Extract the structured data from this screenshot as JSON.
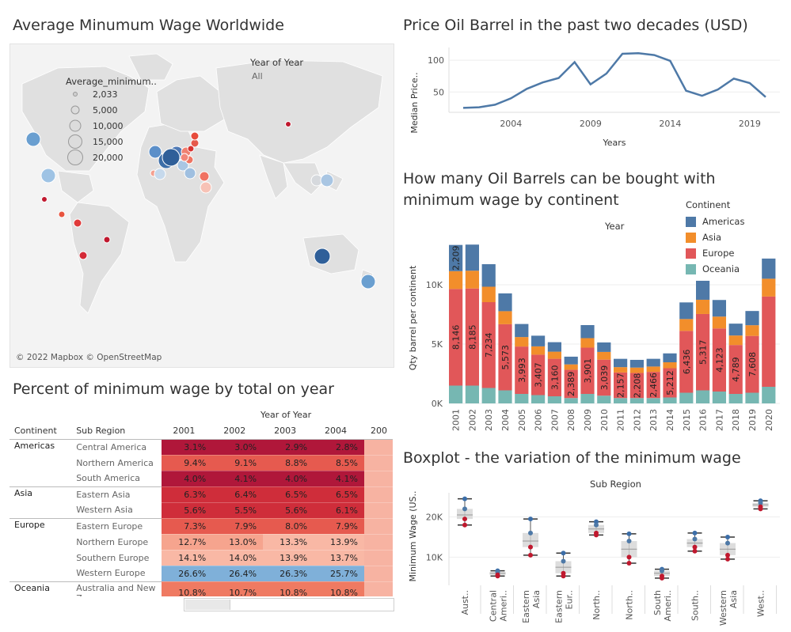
{
  "map": {
    "title": "Average Minumum Wage Worldwide",
    "legend_title": "Average_minimum..",
    "legend_sizes": [
      "2,033",
      "5,000",
      "10,000",
      "15,000",
      "20,000"
    ],
    "filter_title": "Year of Year",
    "filter_value": "All",
    "credit": "© 2022 Mapbox © OpenStreetMap"
  },
  "oil_price": {
    "title": "Price Oil Barrel in the past two decades (USD)",
    "ylabel": "Median Price..",
    "xlabel": "Years",
    "x_ticks": [
      "2004",
      "2009",
      "2014",
      "2019"
    ],
    "y_ticks": [
      "50",
      "100"
    ]
  },
  "barrels": {
    "title_line1": "How many Oil Barrels can be bought with",
    "title_line2": "minimum wage by continent",
    "header": "Year",
    "ylabel": "Qty barrel per continent",
    "y_ticks": [
      "0K",
      "5K",
      "10K"
    ],
    "legend_title": "Continent",
    "legend": [
      {
        "name": "Americas",
        "color": "#4e79a7"
      },
      {
        "name": "Asia",
        "color": "#f28e2b"
      },
      {
        "name": "Europe",
        "color": "#e15759"
      },
      {
        "name": "Oceania",
        "color": "#76b7b2"
      }
    ]
  },
  "percent": {
    "title": "Percent of minimum wage by total on year",
    "col_header": "Year of Year",
    "h_continent": "Continent",
    "h_subregion": "Sub Region",
    "years": [
      "2001",
      "2002",
      "2003",
      "2004",
      "200"
    ],
    "rows": [
      {
        "continent": "Americas",
        "sub": "Central America",
        "vals": [
          "3.1%",
          "3.0%",
          "2.9%",
          "2.8%",
          ""
        ]
      },
      {
        "continent": "",
        "sub": "Northern America",
        "vals": [
          "9.4%",
          "9.1%",
          "8.8%",
          "8.5%",
          ""
        ]
      },
      {
        "continent": "",
        "sub": "South America",
        "vals": [
          "4.0%",
          "4.1%",
          "4.0%",
          "4.1%",
          ""
        ]
      },
      {
        "continent": "Asia",
        "sub": "Eastern Asia",
        "vals": [
          "6.3%",
          "6.4%",
          "6.5%",
          "6.5%",
          ""
        ]
      },
      {
        "continent": "",
        "sub": "Western Asia",
        "vals": [
          "5.6%",
          "5.5%",
          "5.6%",
          "6.1%",
          ""
        ]
      },
      {
        "continent": "Europe",
        "sub": "Eastern Europe",
        "vals": [
          "7.3%",
          "7.9%",
          "8.0%",
          "7.9%",
          ""
        ]
      },
      {
        "continent": "",
        "sub": "Northern Europe",
        "vals": [
          "12.7%",
          "13.0%",
          "13.3%",
          "13.9%",
          ""
        ]
      },
      {
        "continent": "",
        "sub": "Southern Europe",
        "vals": [
          "14.1%",
          "14.0%",
          "13.9%",
          "13.7%",
          ""
        ]
      },
      {
        "continent": "",
        "sub": "Western Europe",
        "vals": [
          "26.6%",
          "26.4%",
          "26.3%",
          "25.7%",
          ""
        ]
      },
      {
        "continent": "Oceania",
        "sub": "Australia and New Zea..",
        "vals": [
          "10.8%",
          "10.7%",
          "10.8%",
          "10.8%",
          ""
        ]
      }
    ]
  },
  "boxplot": {
    "title": "Boxplot - the variation of the minimum wage",
    "header": "Sub Region",
    "ylabel": "Minimum Wage (US..",
    "y_ticks": [
      "10K",
      "20K"
    ]
  },
  "chart_data": [
    {
      "type": "line",
      "title": "Price Oil Barrel in the past two decades (USD)",
      "xlabel": "Years",
      "ylabel": "Median Price..",
      "x": [
        2001,
        2002,
        2003,
        2004,
        2005,
        2006,
        2007,
        2008,
        2009,
        2010,
        2011,
        2012,
        2013,
        2014,
        2015,
        2016,
        2017,
        2018,
        2019,
        2020
      ],
      "series": [
        {
          "values": [
            25,
            26,
            30,
            40,
            55,
            65,
            72,
            97,
            62,
            79,
            110,
            111,
            108,
            99,
            52,
            44,
            54,
            71,
            64,
            42
          ]
        }
      ],
      "ylim": [
        18,
        120
      ]
    },
    {
      "type": "bar",
      "title": "How many Oil Barrels can be bought with minimum wage by continent",
      "ylabel": "Qty barrel per continent",
      "categories": [
        "2001",
        "2002",
        "2003",
        "2004",
        "2005",
        "2006",
        "2007",
        "2008",
        "2009",
        "2010",
        "2011",
        "2012",
        "2013",
        "2014",
        "2015",
        "2016",
        "2017",
        "2018",
        "2019",
        "2020"
      ],
      "series": [
        {
          "name": "Oceania",
          "values": [
            1500,
            1500,
            1300,
            1100,
            800,
            700,
            600,
            450,
            800,
            650,
            450,
            450,
            450,
            500,
            900,
            1100,
            1000,
            800,
            900,
            1400
          ]
        },
        {
          "name": "Europe",
          "values": [
            8146,
            8185,
            7234,
            5573,
            3993,
            3407,
            3160,
            2389,
            3901,
            3039,
            2157,
            2120,
            2208,
            2466,
            5212,
            6436,
            5317,
            4123,
            4789,
            7608
          ]
        },
        {
          "name": "Asia",
          "values": [
            1500,
            1500,
            1300,
            1100,
            800,
            700,
            600,
            450,
            800,
            650,
            450,
            450,
            450,
            500,
            1000,
            1200,
            1000,
            800,
            900,
            1500
          ]
        },
        {
          "name": "Americas",
          "values": [
            2209,
            2200,
            1900,
            1500,
            1100,
            900,
            800,
            650,
            1100,
            800,
            700,
            650,
            650,
            750,
            1400,
            1600,
            1400,
            1000,
            1200,
            1700
          ]
        }
      ],
      "data_labels": [
        "2,209",
        "8,146",
        "8,185",
        "7,234",
        "5,573",
        "3,993",
        "3,407",
        "3,160",
        "2,389",
        "3,901",
        "3,039",
        "2,157",
        "2,208",
        "2,466",
        "5,212",
        "6,436",
        "5,317",
        "4,123",
        "4,789",
        "7,608"
      ],
      "ylim": [
        0,
        14000
      ]
    },
    {
      "type": "table",
      "title": "Percent of minimum wage by total on year"
    },
    {
      "type": "scatter",
      "title": "Boxplot - the variation of the minimum wage",
      "ylabel": "Minimum Wage (US..",
      "categories": [
        "Aust..",
        "Central Ameri..",
        "Eastern Asia",
        "Eastern Eur..",
        "North..",
        "North..",
        "South Ameri..",
        "South..",
        "Western Asia",
        "West.."
      ],
      "box": [
        {
          "min": 18000,
          "q1": 19500,
          "median": 20500,
          "q3": 22000,
          "max": 24500
        },
        {
          "min": 5300,
          "q1": 5600,
          "median": 6000,
          "q3": 6300,
          "max": 6600
        },
        {
          "min": 10500,
          "q1": 12500,
          "median": 14000,
          "q3": 16000,
          "max": 19500
        },
        {
          "min": 5300,
          "q1": 6000,
          "median": 7500,
          "q3": 9000,
          "max": 11000
        },
        {
          "min": 15500,
          "q1": 16000,
          "median": 17000,
          "q3": 18000,
          "max": 18800
        },
        {
          "min": 8500,
          "q1": 10000,
          "median": 12000,
          "q3": 14000,
          "max": 15800
        },
        {
          "min": 4800,
          "q1": 5300,
          "median": 6000,
          "q3": 6600,
          "max": 7000
        },
        {
          "min": 11500,
          "q1": 12500,
          "median": 13500,
          "q3": 14500,
          "max": 16000
        },
        {
          "min": 9500,
          "q1": 10500,
          "median": 12000,
          "q3": 13500,
          "max": 15000
        },
        {
          "min": 22000,
          "q1": 22500,
          "median": 23000,
          "q3": 23500,
          "max": 24000
        }
      ],
      "ylim": [
        3000,
        26000
      ]
    }
  ]
}
